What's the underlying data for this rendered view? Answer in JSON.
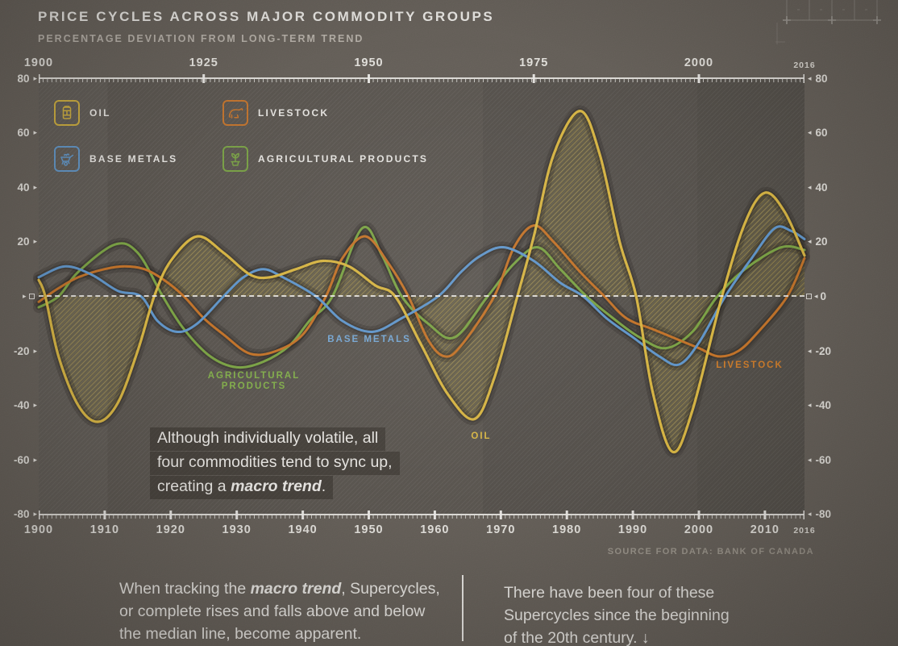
{
  "title": "PRICE CYCLES ACROSS MAJOR COMMODITY GROUPS",
  "subtitle": "PERCENTAGE DEVIATION FROM LONG-TERM TREND",
  "legend": [
    {
      "label": "OIL",
      "icon": "oil-barrel-icon",
      "color": "#d9b845"
    },
    {
      "label": "LIVESTOCK",
      "icon": "cow-icon",
      "color": "#cd7c33"
    },
    {
      "label": "BASE METALS",
      "icon": "wheelbarrow-icon",
      "color": "#699fd2"
    },
    {
      "label": "AGRICULTURAL PRODUCTS",
      "icon": "potted-plant-icon",
      "color": "#82ab4c"
    }
  ],
  "axes": {
    "arrow_right": "▸",
    "arrow_left": "◂",
    "zero_right_label": "0",
    "y_left": [
      "80",
      "60",
      "40",
      "20",
      "-20",
      "-40",
      "-60",
      "-80"
    ],
    "y_right": [
      "80",
      "60",
      "40",
      "20",
      "-20",
      "-40",
      "-60",
      "-80"
    ],
    "x_top": [
      "1900",
      "1925",
      "1950",
      "1975",
      "2000",
      "2016"
    ],
    "x_bottom": [
      "1900",
      "1910",
      "1920",
      "1930",
      "1940",
      "1950",
      "1960",
      "1970",
      "1980",
      "1990",
      "2000",
      "2010",
      "2016"
    ]
  },
  "annotation": {
    "line1": "Although individually volatile, all",
    "line2": "four commodities tend to sync up,",
    "line3_prefix": "creating a ",
    "line3_bold": "macro trend",
    "line3_suffix": "."
  },
  "source": "SOURCE FOR DATA: BANK OF CANADA",
  "footer": {
    "left_prefix": "When tracking the ",
    "left_bold": "macro trend",
    "left_rest": ", Supercycles,\nor complete rises and falls above and below\nthe median line, become apparent.",
    "right": "There have been four of these\nSupercycles since the beginning\nof the 20th century. ↓"
  },
  "chart_data": {
    "type": "line",
    "title": "PRICE CYCLES ACROSS MAJOR COMMODITY GROUPS",
    "subtitle": "PERCENTAGE DEVIATION FROM LONG-TERM TREND",
    "xlabel": "year",
    "ylabel": "percentage deviation from long-term trend",
    "x_range": [
      1900,
      2016
    ],
    "ylim": [
      -80,
      80
    ],
    "zero_line": 0,
    "legend_position": "top-left-inside",
    "grid": false,
    "series": [
      {
        "id": "oil",
        "name": "OIL",
        "chart_label": "OIL",
        "color": "#e4c049",
        "fill": "hatched-to-zero",
        "points": [
          [
            1900,
            6
          ],
          [
            1901,
            0
          ],
          [
            1903,
            -22
          ],
          [
            1906,
            -40
          ],
          [
            1909,
            -46
          ],
          [
            1912,
            -39
          ],
          [
            1915,
            -20
          ],
          [
            1917.5,
            0
          ],
          [
            1920,
            13
          ],
          [
            1924,
            22
          ],
          [
            1928,
            16
          ],
          [
            1932,
            8
          ],
          [
            1935,
            7
          ],
          [
            1939,
            10
          ],
          [
            1943,
            13
          ],
          [
            1947,
            11
          ],
          [
            1951,
            4
          ],
          [
            1954,
            0
          ],
          [
            1958,
            -18
          ],
          [
            1962,
            -36
          ],
          [
            1966,
            -45
          ],
          [
            1969,
            -30
          ],
          [
            1972.5,
            0
          ],
          [
            1975,
            22
          ],
          [
            1978,
            52
          ],
          [
            1982,
            68
          ],
          [
            1985,
            52
          ],
          [
            1988,
            20
          ],
          [
            1990.5,
            0
          ],
          [
            1993,
            -35
          ],
          [
            1996,
            -57
          ],
          [
            1999,
            -42
          ],
          [
            2003.5,
            0
          ],
          [
            2007,
            27
          ],
          [
            2010,
            38
          ],
          [
            2013,
            31
          ],
          [
            2016,
            15
          ]
        ]
      },
      {
        "id": "base_metals",
        "name": "BASE METALS",
        "chart_label": "BASE METALS",
        "color": "#68a0d7",
        "fill": "none",
        "points": [
          [
            1900,
            7
          ],
          [
            1904,
            11
          ],
          [
            1908,
            8
          ],
          [
            1912,
            2
          ],
          [
            1915.5,
            0
          ],
          [
            1918,
            -9
          ],
          [
            1921,
            -13
          ],
          [
            1924,
            -10
          ],
          [
            1928,
            0
          ],
          [
            1931,
            7
          ],
          [
            1934,
            10
          ],
          [
            1937,
            7
          ],
          [
            1942,
            0
          ],
          [
            1946,
            -9
          ],
          [
            1950.5,
            -13
          ],
          [
            1955,
            -8
          ],
          [
            1960.5,
            0
          ],
          [
            1964,
            9
          ],
          [
            1967,
            15
          ],
          [
            1970.5,
            18
          ],
          [
            1975,
            13
          ],
          [
            1979,
            5
          ],
          [
            1982.5,
            0
          ],
          [
            1986,
            -8
          ],
          [
            1990,
            -15
          ],
          [
            1994,
            -22
          ],
          [
            1997,
            -25
          ],
          [
            2000,
            -17
          ],
          [
            2004,
            0
          ],
          [
            2008,
            14
          ],
          [
            2011.5,
            25
          ],
          [
            2014,
            24
          ],
          [
            2016,
            21
          ]
        ]
      },
      {
        "id": "livestock",
        "name": "LIVESTOCK",
        "chart_label": "LIVESTOCK",
        "color": "#d07c2e",
        "fill": "none",
        "points": [
          [
            1900,
            -2
          ],
          [
            1903,
            3
          ],
          [
            1906,
            7
          ],
          [
            1910,
            10
          ],
          [
            1913,
            11
          ],
          [
            1916,
            10
          ],
          [
            1919,
            6
          ],
          [
            1922,
            0
          ],
          [
            1925,
            -8
          ],
          [
            1928,
            -14
          ],
          [
            1932,
            -21
          ],
          [
            1936,
            -20
          ],
          [
            1940,
            -14
          ],
          [
            1943.5,
            0
          ],
          [
            1946,
            14
          ],
          [
            1949.5,
            22
          ],
          [
            1953,
            12
          ],
          [
            1956,
            0
          ],
          [
            1959,
            -16
          ],
          [
            1961.5,
            -22
          ],
          [
            1964,
            -18
          ],
          [
            1969,
            0
          ],
          [
            1972,
            18
          ],
          [
            1975,
            26
          ],
          [
            1978,
            20
          ],
          [
            1982,
            9
          ],
          [
            1985.7,
            0
          ],
          [
            1989,
            -8
          ],
          [
            1993,
            -12
          ],
          [
            1997,
            -16
          ],
          [
            2000,
            -19
          ],
          [
            2003,
            -22
          ],
          [
            2006,
            -20
          ],
          [
            2009,
            -13
          ],
          [
            2013.4,
            0
          ],
          [
            2016,
            14
          ]
        ]
      },
      {
        "id": "agricultural",
        "name": "AGRICULTURAL PRODUCTS",
        "chart_label": "AGRICULTURAL\nPRODUCTS",
        "color": "#84ae4b",
        "fill": "none",
        "points": [
          [
            1900,
            -4
          ],
          [
            1903,
            0
          ],
          [
            1906,
            9
          ],
          [
            1911.5,
            19
          ],
          [
            1915,
            16
          ],
          [
            1918.8,
            0
          ],
          [
            1922,
            -12
          ],
          [
            1926,
            -22
          ],
          [
            1930,
            -26
          ],
          [
            1934,
            -24
          ],
          [
            1938,
            -18
          ],
          [
            1941,
            -9
          ],
          [
            1944.5,
            0
          ],
          [
            1949,
            25
          ],
          [
            1952,
            15
          ],
          [
            1955,
            0
          ],
          [
            1959,
            -10
          ],
          [
            1963,
            -15
          ],
          [
            1968,
            0
          ],
          [
            1972,
            12
          ],
          [
            1975.6,
            18
          ],
          [
            1979,
            10
          ],
          [
            1983,
            0
          ],
          [
            1987,
            -8
          ],
          [
            1991,
            -15
          ],
          [
            1995,
            -19
          ],
          [
            1999,
            -13
          ],
          [
            2002.8,
            0
          ],
          [
            2007,
            10
          ],
          [
            2012.5,
            18
          ],
          [
            2016,
            17
          ]
        ]
      }
    ]
  }
}
